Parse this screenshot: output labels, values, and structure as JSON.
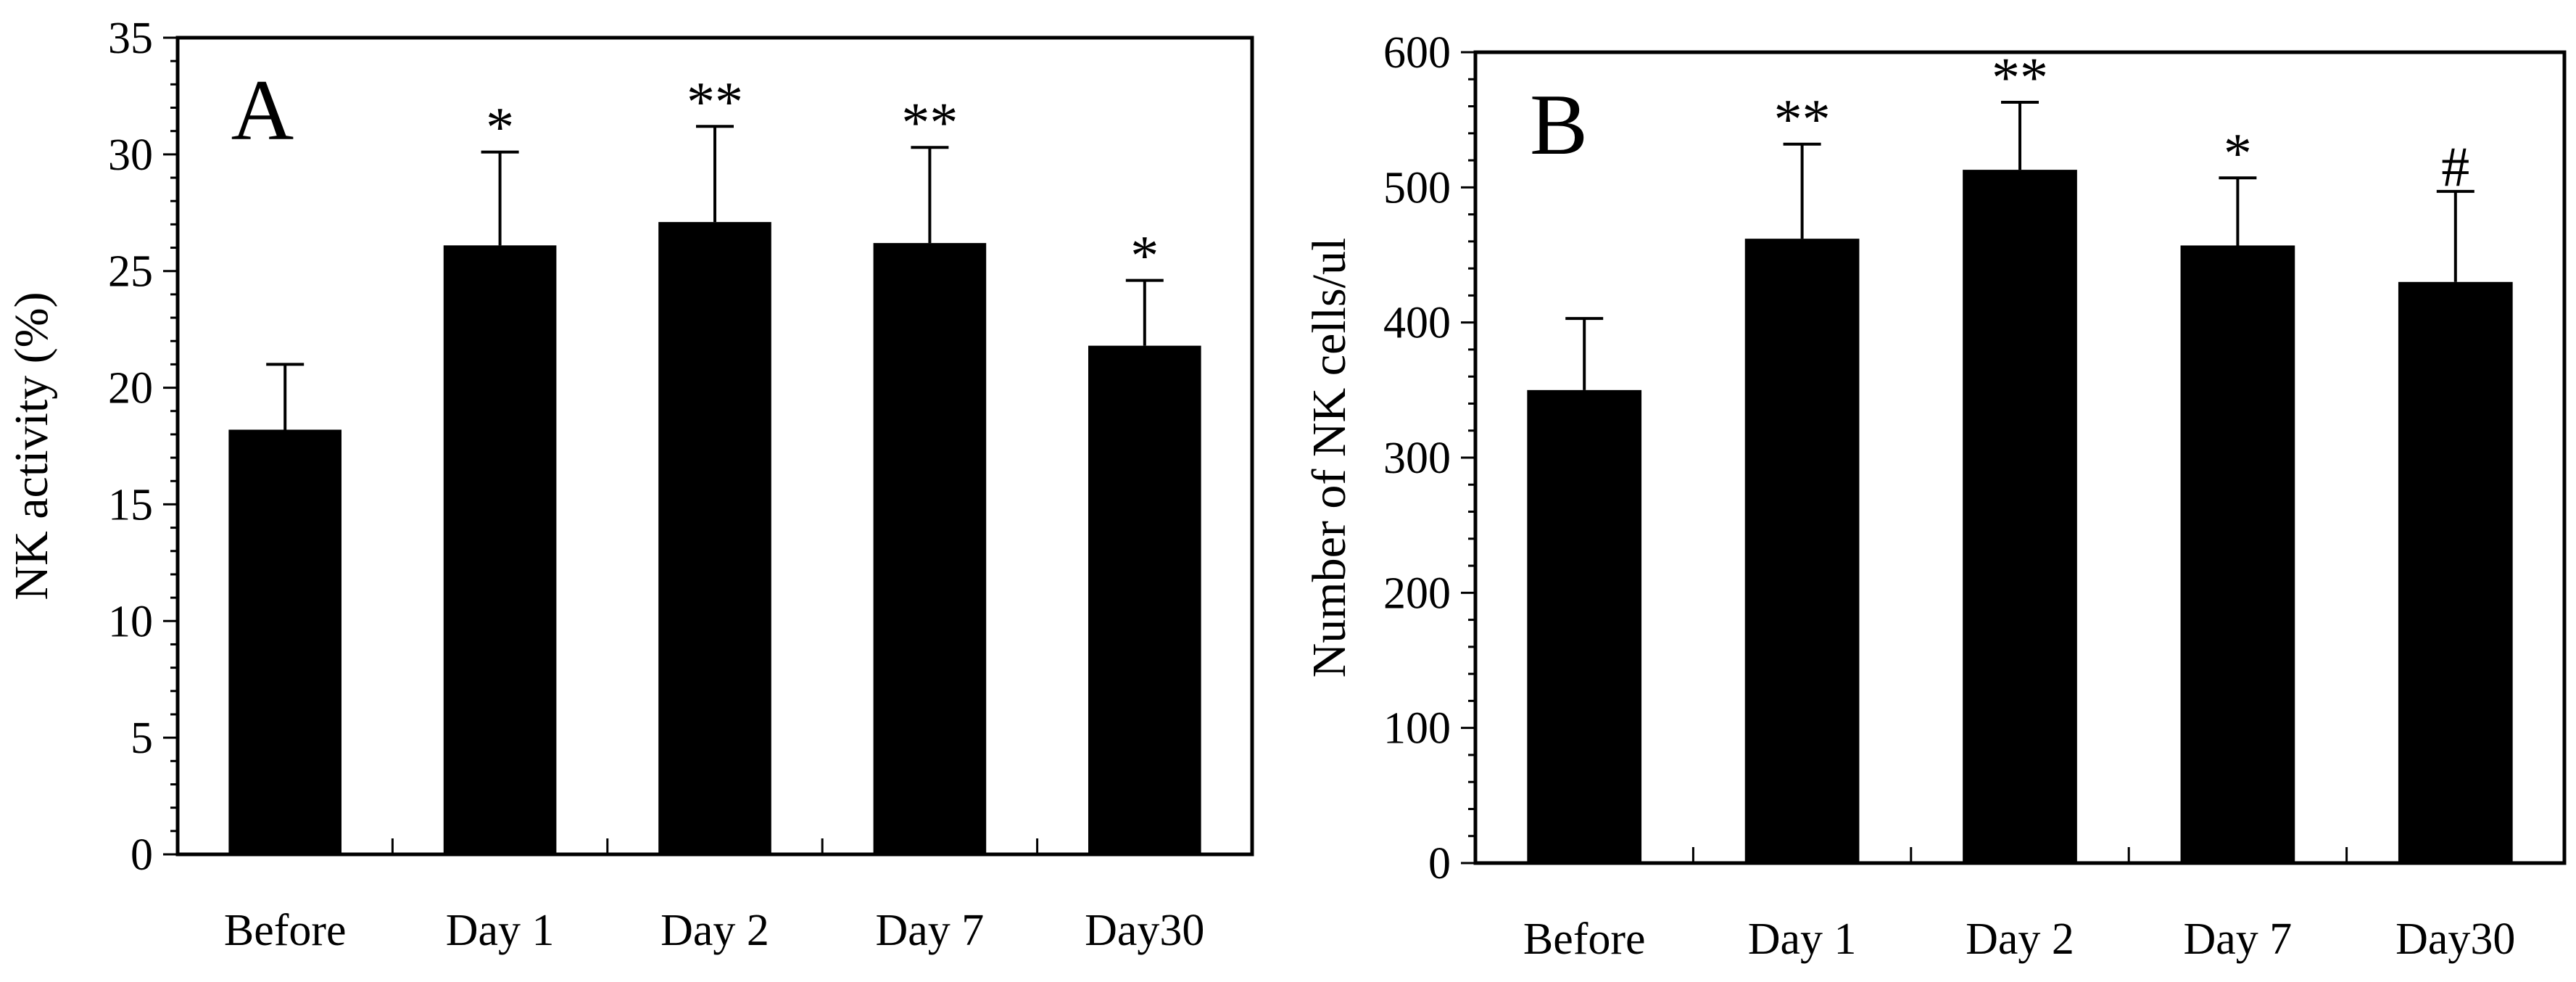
{
  "chart_data": [
    {
      "type": "bar",
      "panel_label": "A",
      "categories": [
        "Before",
        "Day 1",
        "Day 2",
        "Day 7",
        "Day30"
      ],
      "values": [
        18.2,
        26.1,
        27.1,
        26.2,
        21.8
      ],
      "errors": [
        2.8,
        4.0,
        4.1,
        4.1,
        2.8
      ],
      "significance": [
        "",
        "*",
        "**",
        "**",
        "*"
      ],
      "ylabel": "NK activity (%)",
      "xlabel": "",
      "ylim": [
        0,
        35
      ],
      "yticks": [
        0,
        5,
        10,
        15,
        20,
        25,
        30,
        35
      ],
      "yminor_step": 1
    },
    {
      "type": "bar",
      "panel_label": "B",
      "categories": [
        "Before",
        "Day 1",
        "Day 2",
        "Day 7",
        "Day30"
      ],
      "values": [
        350,
        462,
        513,
        457,
        430
      ],
      "errors": [
        53,
        70,
        50,
        50,
        67
      ],
      "significance": [
        "",
        "**",
        "**",
        "*",
        "#"
      ],
      "ylabel": "Number of NK cells/ul",
      "xlabel": "",
      "ylim": [
        0,
        600
      ],
      "yticks": [
        0,
        100,
        200,
        300,
        400,
        500,
        600
      ],
      "yminor_step": 20
    }
  ]
}
